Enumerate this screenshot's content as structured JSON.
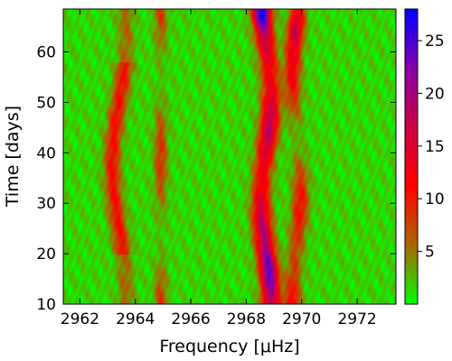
{
  "chart_data": {
    "type": "heatmap",
    "xlabel": "Frequency [μHz]",
    "ylabel": "Time [days]",
    "xlim": [
      2961.4,
      2973.4
    ],
    "ylim": [
      10,
      68.5
    ],
    "x_ticks": [
      2962,
      2964,
      2966,
      2968,
      2970,
      2972
    ],
    "y_ticks": [
      10,
      20,
      30,
      40,
      50,
      60
    ],
    "colorbar": {
      "range": [
        0,
        28
      ],
      "ticks": [
        5,
        10,
        15,
        20,
        25
      ],
      "colors": [
        "#00ff00",
        "#aa6600",
        "#ff0000",
        "#cc0044",
        "#8800aa",
        "#0000ff"
      ]
    },
    "features": [
      {
        "center_frequency": 2963.4,
        "time_range": [
          20,
          58
        ],
        "peak_value": 9
      },
      {
        "center_frequency": 2964.9,
        "time_range": [
          10,
          68.5
        ],
        "peak_value": 7
      },
      {
        "center_frequency": 2968.7,
        "time_range": [
          10,
          68.5
        ],
        "peak_value": 28
      },
      {
        "center_frequency": 2969.8,
        "time_range": [
          10,
          68.5
        ],
        "peak_value": 18
      }
    ]
  }
}
